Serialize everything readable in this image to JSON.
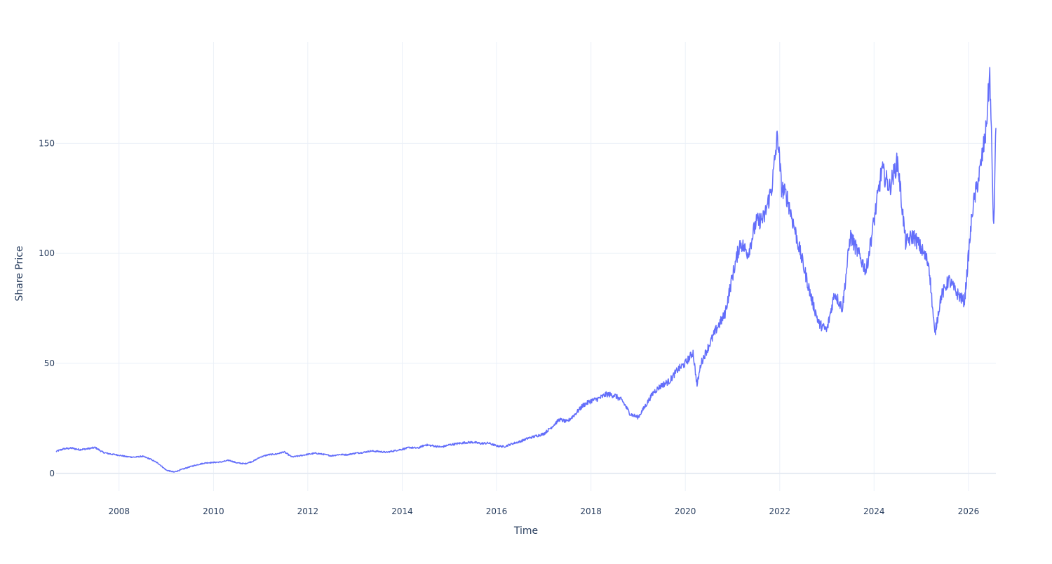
{
  "chart_data": {
    "type": "line",
    "title": "",
    "xlabel": "Time",
    "ylabel": "Share Price",
    "xlim": [
      "2006-09-01",
      "2026-08-01"
    ],
    "ylim": [
      -8,
      196
    ],
    "x_ticks": [
      "2008",
      "2010",
      "2012",
      "2014",
      "2016",
      "2018",
      "2020",
      "2022",
      "2024",
      "2026"
    ],
    "y_ticks": [
      0,
      50,
      100,
      150
    ],
    "grid": true,
    "legend": "none",
    "series": [
      {
        "color": "#636efa",
        "points": [
          [
            "2006-09-01",
            10.0
          ],
          [
            "2006-11-01",
            11.2
          ],
          [
            "2007-01-01",
            11.5
          ],
          [
            "2007-03-01",
            10.8
          ],
          [
            "2007-05-01",
            11.2
          ],
          [
            "2007-07-01",
            11.8
          ],
          [
            "2007-09-01",
            9.5
          ],
          [
            "2007-11-01",
            8.8
          ],
          [
            "2008-01-01",
            8.3
          ],
          [
            "2008-03-01",
            7.6
          ],
          [
            "2008-05-01",
            7.4
          ],
          [
            "2008-07-01",
            7.8
          ],
          [
            "2008-09-01",
            6.5
          ],
          [
            "2008-11-01",
            4.5
          ],
          [
            "2009-01-01",
            1.5
          ],
          [
            "2009-03-01",
            0.6
          ],
          [
            "2009-05-01",
            1.8
          ],
          [
            "2009-07-01",
            3.0
          ],
          [
            "2009-09-01",
            4.0
          ],
          [
            "2009-11-01",
            4.8
          ],
          [
            "2010-01-01",
            5.0
          ],
          [
            "2010-03-01",
            5.2
          ],
          [
            "2010-05-01",
            6.0
          ],
          [
            "2010-07-01",
            4.8
          ],
          [
            "2010-09-01",
            4.4
          ],
          [
            "2010-11-01",
            5.5
          ],
          [
            "2011-01-01",
            7.5
          ],
          [
            "2011-03-01",
            8.5
          ],
          [
            "2011-05-01",
            8.8
          ],
          [
            "2011-07-01",
            9.8
          ],
          [
            "2011-09-01",
            7.5
          ],
          [
            "2011-11-01",
            8.0
          ],
          [
            "2012-01-01",
            8.7
          ],
          [
            "2012-03-01",
            9.2
          ],
          [
            "2012-05-01",
            8.7
          ],
          [
            "2012-07-01",
            8.0
          ],
          [
            "2012-09-01",
            8.6
          ],
          [
            "2012-11-01",
            8.5
          ],
          [
            "2013-01-01",
            9.2
          ],
          [
            "2013-03-01",
            9.5
          ],
          [
            "2013-05-01",
            10.2
          ],
          [
            "2013-07-01",
            10.0
          ],
          [
            "2013-09-01",
            9.6
          ],
          [
            "2013-11-01",
            10.3
          ],
          [
            "2014-01-01",
            11.0
          ],
          [
            "2014-03-01",
            11.8
          ],
          [
            "2014-05-01",
            11.5
          ],
          [
            "2014-07-01",
            13.0
          ],
          [
            "2014-09-01",
            12.5
          ],
          [
            "2014-11-01",
            12.0
          ],
          [
            "2015-01-01",
            13.0
          ],
          [
            "2015-03-01",
            13.5
          ],
          [
            "2015-05-01",
            14.0
          ],
          [
            "2015-07-01",
            14.2
          ],
          [
            "2015-09-01",
            13.6
          ],
          [
            "2015-11-01",
            13.8
          ],
          [
            "2016-01-01",
            12.5
          ],
          [
            "2016-03-01",
            12.2
          ],
          [
            "2016-05-01",
            13.5
          ],
          [
            "2016-07-01",
            14.5
          ],
          [
            "2016-09-01",
            16.0
          ],
          [
            "2016-11-01",
            17.0
          ],
          [
            "2017-01-01",
            18.0
          ],
          [
            "2017-03-01",
            21.0
          ],
          [
            "2017-05-01",
            24.5
          ],
          [
            "2017-07-01",
            23.5
          ],
          [
            "2017-09-01",
            27.0
          ],
          [
            "2017-11-01",
            31.0
          ],
          [
            "2018-01-01",
            33.0
          ],
          [
            "2018-03-01",
            34.0
          ],
          [
            "2018-05-01",
            36.0
          ],
          [
            "2018-07-01",
            35.5
          ],
          [
            "2018-09-01",
            33.0
          ],
          [
            "2018-11-01",
            27.0
          ],
          [
            "2019-01-01",
            25.5
          ],
          [
            "2019-03-01",
            31.0
          ],
          [
            "2019-05-01",
            37.0
          ],
          [
            "2019-07-01",
            40.0
          ],
          [
            "2019-09-01",
            42.0
          ],
          [
            "2019-11-01",
            47.0
          ],
          [
            "2020-01-01",
            50.0
          ],
          [
            "2020-03-01",
            55.0
          ],
          [
            "2020-04-01",
            40.0
          ],
          [
            "2020-05-01",
            50.0
          ],
          [
            "2020-07-01",
            58.0
          ],
          [
            "2020-09-01",
            66.0
          ],
          [
            "2020-11-01",
            72.0
          ],
          [
            "2021-01-01",
            90.0
          ],
          [
            "2021-03-01",
            105.0
          ],
          [
            "2021-05-01",
            100.0
          ],
          [
            "2021-07-01",
            114.0
          ],
          [
            "2021-09-01",
            116.0
          ],
          [
            "2021-11-01",
            130.0
          ],
          [
            "2021-12-15",
            154.0
          ],
          [
            "2022-01-15",
            130.0
          ],
          [
            "2022-03-01",
            125.0
          ],
          [
            "2022-05-01",
            110.0
          ],
          [
            "2022-07-01",
            95.0
          ],
          [
            "2022-09-01",
            80.0
          ],
          [
            "2022-11-01",
            68.0
          ],
          [
            "2023-01-01",
            65.0
          ],
          [
            "2023-03-01",
            82.0
          ],
          [
            "2023-05-01",
            75.0
          ],
          [
            "2023-07-01",
            108.0
          ],
          [
            "2023-09-01",
            100.0
          ],
          [
            "2023-11-01",
            92.0
          ],
          [
            "2024-01-01",
            115.0
          ],
          [
            "2024-03-01",
            138.0
          ],
          [
            "2024-05-01",
            130.0
          ],
          [
            "2024-07-01",
            142.0
          ],
          [
            "2024-09-01",
            105.0
          ],
          [
            "2024-11-01",
            108.0
          ],
          [
            "2025-01-01",
            102.0
          ],
          [
            "2025-03-01",
            95.0
          ],
          [
            "2025-04-15",
            63.0
          ],
          [
            "2025-06-01",
            80.0
          ],
          [
            "2025-08-01",
            88.0
          ],
          [
            "2025-10-01",
            82.0
          ],
          [
            "2025-12-01",
            78.0
          ],
          [
            "2026-02-01",
            120.0
          ],
          [
            "2026-04-01",
            138.0
          ],
          [
            "2026-05-15",
            155.0
          ],
          [
            "2026-06-15",
            182.0
          ],
          [
            "2026-07-15",
            110.0
          ],
          [
            "2026-08-01",
            157.0
          ]
        ]
      }
    ]
  }
}
